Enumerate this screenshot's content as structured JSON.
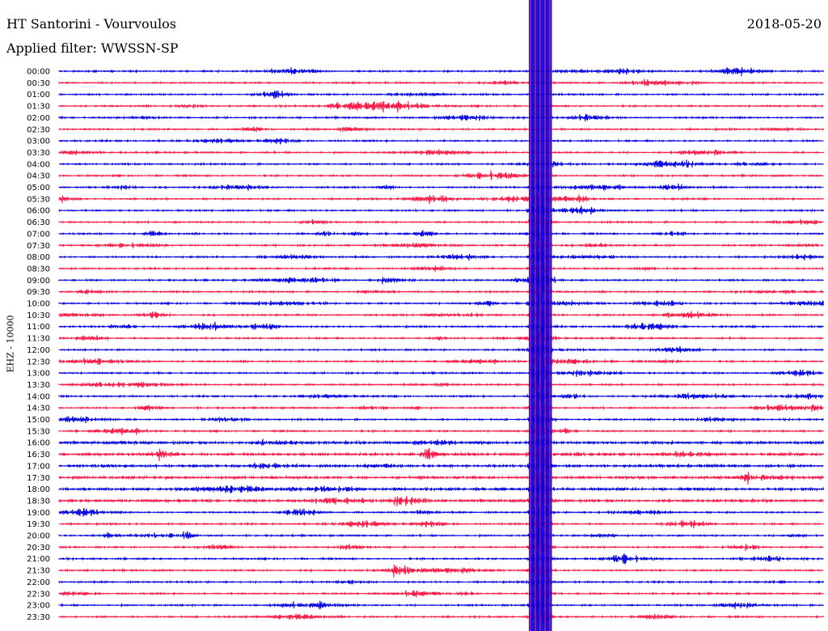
{
  "header": {
    "title": "HT Santorini - Vourvoulos",
    "filter": "Applied filter: WWSSN-SP",
    "date": "2018-05-20"
  },
  "chart_data": {
    "type": "helicorder",
    "title": "HT Santorini - Vourvoulos",
    "subtitle": "Applied filter: WWSSN-SP",
    "date": "2018-05-20",
    "ylabel": "EHZ - 10000",
    "row_labels": [
      "00:00",
      "00:30",
      "01:00",
      "01:30",
      "02:00",
      "02:30",
      "03:00",
      "03:30",
      "04:00",
      "04:30",
      "05:00",
      "05:30",
      "06:00",
      "06:30",
      "07:00",
      "07:30",
      "08:00",
      "08:30",
      "09:00",
      "09:30",
      "10:00",
      "10:30",
      "11:00",
      "11:30",
      "12:00",
      "12:30",
      "13:00",
      "13:30",
      "14:00",
      "14:30",
      "15:00",
      "15:30",
      "16:00",
      "16:30",
      "17:00",
      "17:30",
      "18:00",
      "18:30",
      "19:00",
      "19:30",
      "20:00",
      "20:30",
      "21:00",
      "21:30",
      "22:00",
      "22:30",
      "23:00",
      "23:30"
    ],
    "colors": [
      "#0000e6",
      "#ff1744"
    ],
    "background": "#ffffff"
  }
}
